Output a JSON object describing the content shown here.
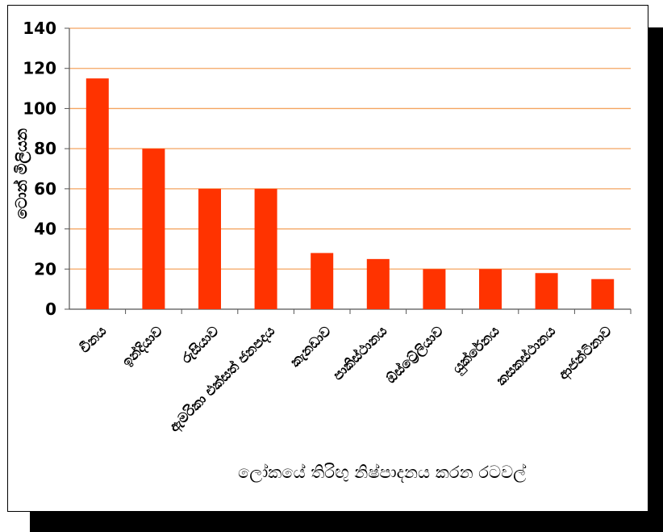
{
  "chart_data": {
    "type": "bar",
    "title": "",
    "xlabel": "ලෝකයේ තිරිඟු නිෂ්පාදනය කරන රටවල්",
    "ylabel": "ටොන් මිලියන",
    "ylim": [
      0,
      140
    ],
    "yticks": [
      0,
      20,
      40,
      60,
      80,
      100,
      120,
      140
    ],
    "grid": true,
    "bar_color": "#ff3300",
    "grid_color": "#f4a460",
    "categories": [
      "චීනය",
      "ඉන්දියාව",
      "රුසියාව",
      "ඇමරිකා එක්සත් ජනපදය",
      "කැනඩාව",
      "පාකිස්ථානය",
      "ඕස්ට්‍රේලියාව",
      "යුක්රේනය",
      "කසකස්ථානය",
      "ආජන්ටිනාව"
    ],
    "values": [
      115,
      80,
      60,
      60,
      28,
      25,
      20,
      20,
      18,
      15
    ]
  }
}
